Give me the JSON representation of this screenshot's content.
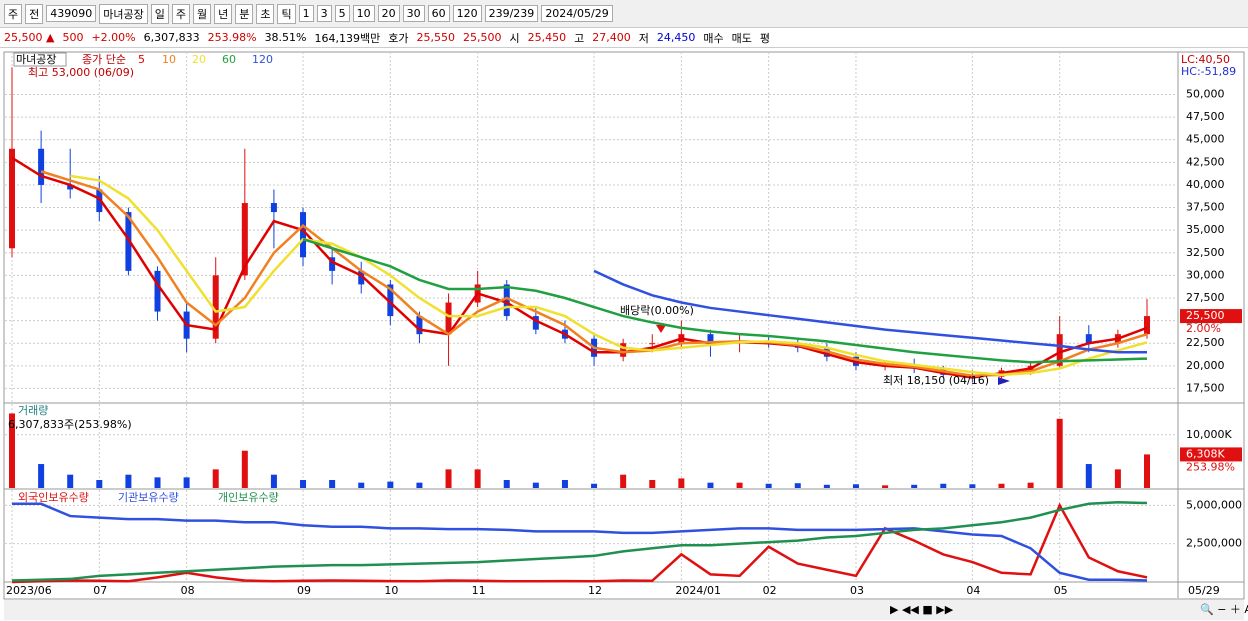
{
  "toolbar": {
    "row1": [
      "주",
      "전",
      "439090",
      "마녀공장",
      "일",
      "주",
      "월",
      "년",
      "분",
      "초",
      "틱",
      "1",
      "3",
      "5",
      "10",
      "20",
      "30",
      "60",
      "120",
      "239/239",
      "2024/05/29"
    ],
    "row2": [
      {
        "text": "25,500 ▲",
        "color": "#d00000"
      },
      {
        "text": "500",
        "color": "#d00000"
      },
      {
        "text": "+2.00%",
        "color": "#d00000"
      },
      {
        "text": "6,307,833",
        "color": "#000000"
      },
      {
        "text": "253.98%",
        "color": "#d00000"
      },
      {
        "text": "38.51%",
        "color": "#000000"
      },
      {
        "text": "164,139백만",
        "color": "#000000"
      },
      {
        "text": "호가",
        "color": "#000000"
      },
      {
        "text": "25,550",
        "color": "#d00000"
      },
      {
        "text": "25,500",
        "color": "#d00000"
      },
      {
        "text": "시",
        "color": "#000000"
      },
      {
        "text": "25,450",
        "color": "#d00000"
      },
      {
        "text": "고",
        "color": "#000000"
      },
      {
        "text": "27,400",
        "color": "#d00000"
      },
      {
        "text": "저",
        "color": "#000000"
      },
      {
        "text": "24,450",
        "color": "#0000d0"
      },
      {
        "text": "매수",
        "color": "#000000"
      },
      {
        "text": "매도",
        "color": "#000000"
      },
      {
        "text": "평",
        "color": "#000000"
      }
    ]
  },
  "chart_data": [
    {
      "type": "candlestick",
      "name": "마녀공장",
      "legend_prefix": "종가 단순",
      "lc": "LC:40,50",
      "hc": "HC:-51,89",
      "price_tag": "25,500",
      "price_tag_pct": "2.00%",
      "annotations": [
        "최고 53,000 (06/09)",
        "배당락(0.00%)",
        "최저 18,150 (04/16)"
      ],
      "up_color": "#e01010",
      "down_color": "#1040e0",
      "candles": {
        "open": [
          33000,
          44000,
          40000,
          39500,
          37000,
          30500,
          26000,
          23000,
          30000,
          38000,
          37000,
          32000,
          30500,
          29000,
          25500,
          23500,
          27000,
          29000,
          25500,
          24000,
          23000,
          21000,
          22500,
          22500,
          23500,
          22500,
          22800,
          22500,
          22000,
          21000,
          20000,
          20000,
          19700,
          19000,
          18800,
          19500,
          20000,
          23500,
          22500,
          23500
        ],
        "high": [
          53000,
          46000,
          44000,
          41000,
          37500,
          31000,
          27000,
          32000,
          44000,
          39500,
          37500,
          33000,
          31500,
          29500,
          26000,
          28000,
          30500,
          29500,
          26500,
          25000,
          23500,
          23000,
          23500,
          25000,
          24000,
          23500,
          23200,
          23000,
          22500,
          21500,
          20500,
          20800,
          20000,
          19500,
          19800,
          20500,
          25500,
          24500,
          24000,
          27400
        ],
        "low": [
          32000,
          38000,
          38500,
          36000,
          30000,
          25000,
          21500,
          22500,
          29500,
          33000,
          31000,
          29000,
          28000,
          24500,
          22500,
          20000,
          26500,
          25000,
          23500,
          22500,
          20000,
          20500,
          21500,
          22000,
          21000,
          21500,
          22000,
          21500,
          20500,
          19500,
          19500,
          19200,
          18700,
          18150,
          18500,
          19000,
          19800,
          21500,
          22000,
          23000
        ],
        "close": [
          44000,
          40000,
          39500,
          37000,
          30500,
          26000,
          23000,
          30000,
          38000,
          37000,
          32000,
          30500,
          29000,
          25500,
          23500,
          27000,
          29000,
          25500,
          24000,
          23000,
          21000,
          22500,
          22500,
          23500,
          22500,
          22800,
          22500,
          22000,
          21000,
          20000,
          20000,
          19700,
          19000,
          18800,
          19500,
          20000,
          23500,
          22500,
          23500,
          25500
        ]
      },
      "series": [
        {
          "name": "5",
          "color": "#e00000",
          "values": [
            43000,
            41000,
            40000,
            38500,
            34000,
            29000,
            24500,
            24000,
            31000,
            36000,
            35000,
            31500,
            30000,
            27000,
            24000,
            23500,
            28000,
            27000,
            25000,
            23500,
            21500,
            21500,
            22000,
            23000,
            22500,
            22600,
            22500,
            22200,
            21300,
            20400,
            20000,
            19800,
            19200,
            18700,
            19200,
            19700,
            21500,
            22500,
            23000,
            24200
          ]
        },
        {
          "name": "10",
          "color": "#f08020",
          "values": [
            null,
            41500,
            40500,
            39500,
            36500,
            32000,
            27000,
            24500,
            27500,
            32500,
            35500,
            33000,
            30500,
            28500,
            25500,
            23500,
            26000,
            27500,
            26000,
            24500,
            22000,
            21500,
            21700,
            22500,
            22600,
            22700,
            22600,
            22300,
            21600,
            20700,
            20200,
            19900,
            19400,
            18900,
            19000,
            19400,
            20500,
            21800,
            22500,
            23500
          ]
        },
        {
          "name": "20",
          "color": "#f0e030",
          "values": [
            null,
            null,
            41000,
            40500,
            38500,
            35000,
            30500,
            26000,
            26500,
            30500,
            34000,
            33500,
            32000,
            30000,
            27500,
            25500,
            25500,
            26500,
            26500,
            25500,
            23500,
            22000,
            21700,
            22000,
            22300,
            22600,
            22700,
            22500,
            22000,
            21200,
            20500,
            20100,
            19700,
            19300,
            19000,
            19200,
            19700,
            20800,
            21700,
            22600
          ]
        },
        {
          "name": "60",
          "color": "#20a040",
          "values": [
            null,
            null,
            null,
            null,
            null,
            null,
            null,
            null,
            null,
            null,
            34000,
            33000,
            32000,
            31000,
            29500,
            28500,
            28500,
            28700,
            28300,
            27500,
            26500,
            25500,
            24800,
            24200,
            23800,
            23500,
            23300,
            23000,
            22700,
            22300,
            21900,
            21500,
            21200,
            20900,
            20600,
            20400,
            20500,
            20600,
            20700,
            20800
          ]
        },
        {
          "name": "120",
          "color": "#3050e0",
          "values": [
            null,
            null,
            null,
            null,
            null,
            null,
            null,
            null,
            null,
            null,
            null,
            null,
            null,
            null,
            null,
            null,
            null,
            null,
            null,
            null,
            30500,
            29000,
            27800,
            27000,
            26400,
            26000,
            25600,
            25200,
            24800,
            24400,
            24000,
            23700,
            23400,
            23100,
            22800,
            22500,
            22200,
            21800,
            21500,
            21500
          ]
        }
      ],
      "ylim": [
        16000,
        54700
      ],
      "yticks": [
        {
          "value": 17500,
          "label": "17,500"
        },
        {
          "value": 20000,
          "label": "20,000"
        },
        {
          "value": 22500,
          "label": "22,500"
        },
        {
          "value": 25000,
          "label": "25,000"
        },
        {
          "value": 27500,
          "label": "27,500"
        },
        {
          "value": 30000,
          "label": "30,000"
        },
        {
          "value": 32500,
          "label": "32,500"
        },
        {
          "value": 35000,
          "label": "35,000"
        },
        {
          "value": 37500,
          "label": "37,500"
        },
        {
          "value": 40000,
          "label": "40,000"
        },
        {
          "value": 42500,
          "label": "42,500"
        },
        {
          "value": 45000,
          "label": "45,000"
        },
        {
          "value": 47500,
          "label": "47,500"
        },
        {
          "value": 50000,
          "label": "50,000"
        }
      ],
      "grid": true
    },
    {
      "type": "bar",
      "title": "거래량",
      "subtitle": "6,307,833주(253.98%)",
      "tag": "6,308K",
      "tag_pct": "253.98%",
      "values": [
        14000,
        4500,
        2500,
        1500,
        2500,
        2000,
        2000,
        3500,
        7000,
        2500,
        1500,
        1500,
        1000,
        1200,
        1000,
        3500,
        3500,
        1500,
        1000,
        1500,
        800,
        2500,
        1500,
        1800,
        1000,
        1000,
        800,
        900,
        600,
        700,
        500,
        600,
        800,
        700,
        800,
        1000,
        13000,
        4500,
        3500,
        6308
      ],
      "ylim": [
        0,
        15400
      ],
      "yticks": [
        {
          "value": 10000,
          "label": "10,000K"
        }
      ],
      "grid": true
    },
    {
      "type": "line",
      "current_date": "05/29",
      "categories": [
        "2023/06",
        null,
        null,
        "07",
        null,
        null,
        "08",
        null,
        null,
        null,
        "09",
        null,
        null,
        "10",
        null,
        null,
        "11",
        null,
        null,
        null,
        "12",
        null,
        null,
        "2024/01",
        null,
        null,
        "02",
        null,
        null,
        "03",
        null,
        null,
        null,
        "04",
        null,
        null,
        "05",
        null,
        null,
        null
      ],
      "series": [
        {
          "name": "외국인보유수량",
          "color": "#e01010",
          "values": [
            0,
            50000,
            100000,
            80000,
            50000,
            300000,
            600000,
            300000,
            100000,
            50000,
            80000,
            100000,
            80000,
            60000,
            50000,
            100000,
            80000,
            50000,
            50000,
            60000,
            50000,
            100000,
            80000,
            1800000,
            500000,
            400000,
            2300000,
            1200000,
            800000,
            400000,
            3500000,
            2700000,
            1800000,
            1300000,
            600000,
            500000,
            5000000,
            1600000,
            700000,
            300000
          ]
        },
        {
          "name": "기관보유수량",
          "color": "#3050e0",
          "values": [
            5100000,
            5100000,
            4300000,
            4200000,
            4100000,
            4100000,
            4000000,
            4000000,
            3900000,
            3900000,
            3700000,
            3600000,
            3600000,
            3500000,
            3500000,
            3450000,
            3450000,
            3400000,
            3300000,
            3300000,
            3300000,
            3200000,
            3200000,
            3300000,
            3400000,
            3500000,
            3500000,
            3400000,
            3400000,
            3400000,
            3450000,
            3500000,
            3300000,
            3100000,
            3000000,
            2200000,
            600000,
            150000,
            150000,
            100000
          ]
        },
        {
          "name": "개인보유수량",
          "color": "#209050",
          "values": [
            100000,
            150000,
            200000,
            400000,
            500000,
            600000,
            700000,
            800000,
            900000,
            1000000,
            1050000,
            1100000,
            1100000,
            1150000,
            1200000,
            1250000,
            1300000,
            1400000,
            1500000,
            1600000,
            1700000,
            2000000,
            2200000,
            2400000,
            2400000,
            2500000,
            2600000,
            2700000,
            2900000,
            3000000,
            3200000,
            3400000,
            3500000,
            3700000,
            3900000,
            4200000,
            4700000,
            5100000,
            5200000,
            5150000
          ]
        }
      ],
      "ylim": [
        0,
        6000000
      ],
      "yticks": [
        {
          "value": 2500000,
          "label": "2,500,000"
        },
        {
          "value": 5000000,
          "label": "5,000,000"
        }
      ],
      "grid": true
    }
  ]
}
